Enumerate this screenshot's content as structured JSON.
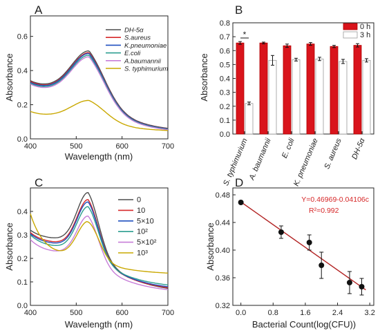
{
  "chart_data": [
    {
      "panel": "A",
      "type": "line",
      "xlabel": "Wavelength (nm)",
      "ylabel": "Absorbance",
      "xlim": [
        400,
        700
      ],
      "ylim": [
        0,
        0.72
      ],
      "xticks": [
        "400",
        "500",
        "600",
        "700"
      ],
      "yticks": [
        "0.0",
        "0.2",
        "0.4",
        "0.6"
      ],
      "legend_position": "top-right",
      "series": [
        {
          "name": "DH-5α",
          "color": "#4d4d4d",
          "peak": 0.515,
          "start": 0.34,
          "end": 0.035
        },
        {
          "name": "S.aureus",
          "color": "#d62728",
          "peak": 0.505,
          "start": 0.335,
          "end": 0.033
        },
        {
          "name": "K.pneumoniae",
          "color": "#1f4fbf",
          "peak": 0.5,
          "start": 0.33,
          "end": 0.032
        },
        {
          "name": "E.coli",
          "color": "#2a9d8f",
          "peak": 0.49,
          "start": 0.325,
          "end": 0.03
        },
        {
          "name": "A.baumannii",
          "color": "#c77dd8",
          "peak": 0.48,
          "start": 0.32,
          "end": 0.028
        },
        {
          "name": "S. typhimurium",
          "color": "#c9a800",
          "peak": 0.225,
          "start": 0.16,
          "end": 0.04
        }
      ]
    },
    {
      "panel": "B",
      "type": "bar",
      "xlabel": "",
      "ylabel": "Absorbance",
      "ylim": [
        0,
        0.8
      ],
      "yticks": [
        "0.0",
        "0.1",
        "0.2",
        "0.3",
        "0.4",
        "0.5",
        "0.6",
        "0.7",
        "0.8"
      ],
      "categories": [
        "S. typhimurium",
        "A. baumannii",
        "E. coli",
        "K. pneumoniae",
        "S. aureus",
        "DH-5α"
      ],
      "legend_position": "top-right",
      "series": [
        {
          "name": "0 h",
          "color": "#d9141c",
          "values": [
            0.655,
            0.655,
            0.635,
            0.648,
            0.63,
            0.638
          ],
          "errors": [
            0.01,
            0.006,
            0.012,
            0.01,
            0.008,
            0.012
          ]
        },
        {
          "name": "3 h",
          "color": "#ffffff",
          "values": [
            0.22,
            0.53,
            0.535,
            0.54,
            0.522,
            0.53
          ],
          "errors": [
            0.01,
            0.035,
            0.01,
            0.012,
            0.015,
            0.012
          ]
        }
      ],
      "annotation": "*"
    },
    {
      "panel": "C",
      "type": "line",
      "xlabel": "Wavelength (nm)",
      "ylabel": "Absorbance",
      "xlim": [
        400,
        700
      ],
      "ylim": [
        0,
        0.5
      ],
      "xticks": [
        "400",
        "500",
        "600",
        "700"
      ],
      "yticks": [
        "0.0",
        "0.1",
        "0.2",
        "0.3",
        "0.4"
      ],
      "legend_position": "top-right",
      "series": [
        {
          "name": "0",
          "color": "#4d4d4d",
          "peak": 0.48,
          "start": 0.32,
          "end": 0.05
        },
        {
          "name": "10",
          "color": "#d62728",
          "peak": 0.45,
          "start": 0.31,
          "end": 0.055
        },
        {
          "name": "5×10",
          "color": "#1f4fbf",
          "peak": 0.44,
          "start": 0.305,
          "end": 0.06
        },
        {
          "name": "10²",
          "color": "#2a9d8f",
          "peak": 0.42,
          "start": 0.3,
          "end": 0.07
        },
        {
          "name": "5×10²",
          "color": "#c77dd8",
          "peak": 0.38,
          "start": 0.28,
          "end": 0.05
        },
        {
          "name": "10³",
          "color": "#c9a800",
          "peak": 0.355,
          "start": 0.39,
          "end": 0.13
        }
      ]
    },
    {
      "panel": "D",
      "type": "scatter",
      "xlabel": "Bacterial Count(log(CFU))",
      "ylabel": "Absorbance",
      "xlim": [
        -0.2,
        3.3
      ],
      "ylim": [
        0.32,
        0.49
      ],
      "xticks": [
        "0.0",
        "0.8",
        "1.6",
        "2.4",
        "3.2"
      ],
      "yticks": [
        "0.32",
        "0.36",
        "0.40",
        "0.44",
        "0.48"
      ],
      "x": [
        0,
        1.0,
        1.699,
        2.0,
        2.699,
        3.0
      ],
      "y": [
        0.469,
        0.426,
        0.411,
        0.378,
        0.353,
        0.347
      ],
      "errors": [
        0.002,
        0.009,
        0.011,
        0.019,
        0.016,
        0.012
      ],
      "fit": {
        "slope": -0.04106,
        "intercept": 0.46969,
        "color": "#b22222"
      },
      "equation": "Y=0.46969-0.04106c",
      "r2": "R²=0.992"
    }
  ]
}
